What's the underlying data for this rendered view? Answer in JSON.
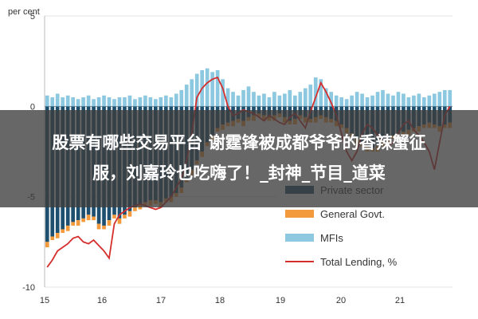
{
  "chart_data": {
    "type": "bar",
    "ylabel": "per cent",
    "ylim": [
      -10,
      5
    ],
    "yticks": [
      "5",
      "0",
      "-5",
      "-10"
    ],
    "xticks": [
      "15",
      "16",
      "17",
      "18",
      "19",
      "20",
      "21"
    ],
    "legend": [
      {
        "name": "Private sector",
        "color": "#1e4f6e"
      },
      {
        "name": "General Govt.",
        "color": "#f39a3c"
      },
      {
        "name": "MFIs",
        "color": "#8cc8e0"
      },
      {
        "name": "Total Lending, %",
        "color": "#d62d2d"
      }
    ],
    "series": [
      {
        "name": "Private sector",
        "values": [
          -7.5,
          -7.2,
          -7.0,
          -6.8,
          -6.6,
          -6.4,
          -6.3,
          -6.2,
          -6.0,
          -6.1,
          -6.5,
          -6.6,
          -6.3,
          -6.0,
          -6.2,
          -6.0,
          -5.8,
          -5.6,
          -5.4,
          -5.3,
          -5.2,
          -5.2,
          -5.3,
          -5.1,
          -5.0,
          -4.8,
          -4.5,
          -4.0,
          -3.5,
          -3.0,
          -2.5,
          -2.0,
          -1.6,
          -1.2,
          -1.0,
          -0.9,
          -0.8,
          -0.7,
          -0.8,
          -0.6,
          -0.5,
          -0.4,
          -0.5,
          -0.6,
          -0.5,
          -0.4,
          -0.6,
          -0.8,
          -0.7,
          -0.5,
          -0.6,
          -0.7,
          -0.6,
          -0.5,
          -0.6,
          -0.7,
          -0.8,
          -1.0,
          -1.2,
          -1.5,
          -1.8,
          -2.0,
          -2.2,
          -2.3,
          -2.2,
          -2.0,
          -1.8,
          -1.6,
          -1.5,
          -1.4,
          -1.3,
          -1.2,
          -1.1,
          -1.0,
          -0.9,
          -1.0,
          -1.1,
          -1.0,
          -0.9
        ]
      },
      {
        "name": "MFIs",
        "values": [
          0.6,
          0.5,
          0.7,
          0.5,
          0.6,
          0.5,
          0.4,
          0.5,
          0.6,
          0.4,
          0.5,
          0.6,
          0.5,
          0.4,
          0.5,
          0.5,
          0.6,
          0.4,
          0.5,
          0.6,
          0.5,
          0.4,
          0.5,
          0.6,
          0.5,
          0.7,
          0.9,
          1.2,
          1.5,
          1.8,
          2.0,
          2.1,
          1.9,
          2.0,
          1.5,
          1.0,
          0.8,
          0.6,
          0.9,
          1.1,
          0.8,
          0.6,
          0.7,
          0.5,
          0.8,
          0.6,
          0.7,
          0.9,
          0.6,
          0.8,
          1.0,
          1.2,
          1.6,
          1.5,
          1.0,
          0.8,
          0.6,
          0.5,
          0.4,
          0.6,
          0.8,
          0.7,
          0.5,
          0.6,
          0.8,
          0.9,
          0.7,
          0.6,
          0.8,
          0.7,
          0.5,
          0.6,
          0.7,
          0.5,
          0.6,
          0.7,
          0.8,
          0.9,
          0.9
        ]
      },
      {
        "name": "General Govt.",
        "values": [
          -0.3,
          -0.2,
          -0.3,
          -0.2,
          -0.3,
          -0.2,
          -0.3,
          -0.2,
          -0.3,
          -0.2,
          -0.3,
          -0.2,
          -0.3,
          -0.2,
          -0.3,
          -0.2,
          -0.3,
          -0.2,
          -0.3,
          -0.2,
          -0.3,
          -0.2,
          -0.3,
          -0.2,
          -0.3,
          -0.2,
          -0.3,
          -0.2,
          -0.3,
          -0.2,
          -0.3,
          -0.2,
          -0.3,
          -0.2,
          -0.3,
          -0.2,
          -0.3,
          -0.2,
          -0.3,
          -0.2,
          -0.3,
          -0.2,
          -0.3,
          -0.2,
          -0.3,
          -0.2,
          -0.3,
          -0.2,
          -0.3,
          -0.2,
          -0.3,
          -0.2,
          -0.3,
          -0.2,
          -0.3,
          -0.2,
          -0.3,
          -0.2,
          -0.3,
          -0.2,
          -0.3,
          -0.2,
          -0.3,
          -0.2,
          -0.3,
          -0.2,
          -0.3,
          -0.2,
          -0.3,
          -0.2,
          -0.3,
          -0.2,
          -0.3,
          -0.2,
          -0.3,
          -0.2,
          -0.3,
          -0.2,
          -0.3
        ]
      },
      {
        "name": "Total Lending, %",
        "values": [
          -8.9,
          -8.5,
          -8.0,
          -7.8,
          -7.6,
          -7.3,
          -7.2,
          -7.5,
          -7.6,
          -7.4,
          -7.7,
          -8.0,
          -8.4,
          -6.5,
          -6.0,
          -5.8,
          -5.6,
          -5.5,
          -5.4,
          -5.5,
          -5.6,
          -5.7,
          -5.6,
          -5.3,
          -5.0,
          -4.5,
          -4.0,
          -3.0,
          -1.5,
          0.5,
          1.0,
          1.3,
          1.5,
          1.6,
          1.0,
          0.0,
          -0.5,
          -0.4,
          -0.2,
          -0.3,
          -0.4,
          -0.6,
          -0.8,
          -0.5,
          -0.7,
          -0.9,
          -1.0,
          -0.6,
          -0.4,
          -0.8,
          -1.2,
          -0.3,
          0.5,
          1.3,
          0.8,
          0.2,
          -0.5,
          -1.5,
          -2.5,
          -3.0,
          -2.5,
          -1.5,
          -1.0,
          -1.2,
          -1.6,
          -1.9,
          -2.2,
          -2.0,
          -1.5,
          -1.0,
          -0.8,
          -1.3,
          -1.6,
          -2.0,
          -2.5,
          -3.5,
          -2.0,
          -0.5,
          0.0
        ]
      }
    ]
  },
  "overlay": {
    "line1": "股票有哪些交易平台 谢霆锋被成都爷爷的香辣蟹征",
    "line2": "服，刘嘉玲也吃嗨了！_封神_节目_道菜"
  }
}
